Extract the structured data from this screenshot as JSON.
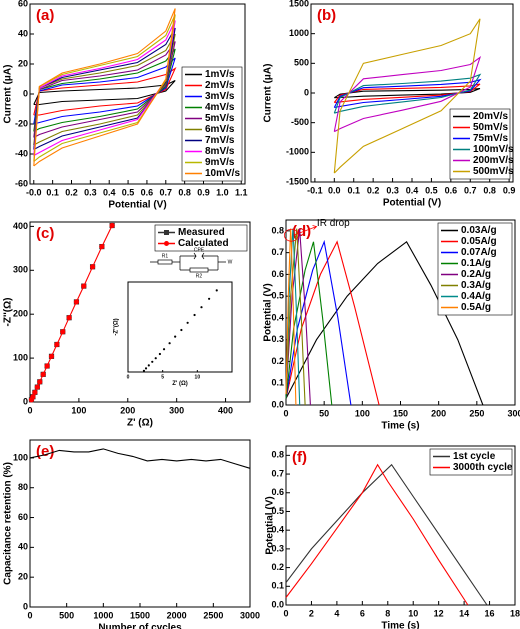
{
  "chart_data": [
    {
      "type": "line",
      "panel_label": "(a)",
      "xlabel": "Potential (V)",
      "ylabel": "Current (μA)",
      "legend": "lower right",
      "xlim": [
        -0.02,
        1.12
      ],
      "ylim": [
        -60,
        60
      ],
      "xticks": [
        {
          "value": 0,
          "label": "-0.0"
        },
        0.1,
        0.2,
        0.3,
        0.4,
        0.5,
        0.6,
        0.7,
        0.8,
        0.9,
        {
          "value": 1,
          "label": "1.0"
        },
        1.1
      ],
      "yticks": [
        -60,
        -40,
        -20,
        0,
        20,
        40,
        60
      ],
      "x": [
        0,
        0.03,
        0.15,
        0.35,
        0.55,
        0.7,
        0.75,
        0.7,
        0.55,
        0.35,
        0.15,
        0.03,
        0
      ],
      "series": [
        {
          "name": "1mV/s",
          "color": "#000000",
          "values": [
            -7,
            1,
            2,
            3,
            4,
            6,
            9,
            2,
            -3,
            -4,
            -5,
            -7,
            -7
          ]
        },
        {
          "name": "2mV/s",
          "color": "#ff0000",
          "values": [
            -14,
            2,
            4,
            6,
            8,
            13,
            17,
            3,
            -6,
            -8,
            -11,
            -14,
            -14
          ]
        },
        {
          "name": "3mV/s",
          "color": "#0000ff",
          "values": [
            -20,
            2,
            6,
            8,
            11,
            18,
            24,
            4,
            -8,
            -12,
            -15,
            -19,
            -20
          ]
        },
        {
          "name": "4mV/s",
          "color": "#008000",
          "values": [
            -25,
            3,
            7,
            10,
            14,
            22,
            30,
            5,
            -10,
            -15,
            -19,
            -23,
            -25
          ]
        },
        {
          "name": "5mV/s",
          "color": "#800080",
          "values": [
            -29,
            3,
            9,
            12,
            16,
            26,
            35,
            6,
            -12,
            -17,
            -22,
            -27,
            -29
          ]
        },
        {
          "name": "6mV/s",
          "color": "#808000",
          "values": [
            -34,
            4,
            10,
            14,
            19,
            29,
            40,
            7,
            -14,
            -20,
            -25,
            -32,
            -34
          ]
        },
        {
          "name": "7mV/s",
          "color": "#000080",
          "values": [
            -37,
            4,
            11,
            16,
            21,
            33,
            44,
            8,
            -16,
            -22,
            -28,
            -35,
            -37
          ]
        },
        {
          "name": "8mV/s",
          "color": "#ff00ff",
          "values": [
            -41,
            4,
            12,
            17,
            23,
            36,
            49,
            9,
            -17,
            -24,
            -31,
            -39,
            -41
          ]
        },
        {
          "name": "9mV/s",
          "color": "#b8b800",
          "values": [
            -45,
            5,
            13,
            19,
            25,
            39,
            53,
            9,
            -19,
            -26,
            -33,
            -42,
            -45
          ]
        },
        {
          "name": "10mV/s",
          "color": "#ff8000",
          "values": [
            -48,
            5,
            14,
            20,
            27,
            42,
            57,
            10,
            -20,
            -28,
            -36,
            -45,
            -48
          ]
        }
      ]
    },
    {
      "type": "line",
      "panel_label": "(b)",
      "xlabel": "Potential (V)",
      "ylabel": "Current (μA)",
      "legend": "lower right",
      "xlim": [
        -0.12,
        0.92
      ],
      "ylim": [
        -1500,
        1500
      ],
      "xticks": [
        -0.1,
        {
          "value": 0,
          "label": "0.0"
        },
        0.1,
        0.2,
        0.3,
        0.4,
        0.5,
        0.6,
        0.7,
        0.8,
        0.9
      ],
      "yticks": [
        -1500,
        -1000,
        -500,
        0,
        500,
        1000,
        1500
      ],
      "x": [
        0,
        0.03,
        0.15,
        0.35,
        0.55,
        0.7,
        0.75,
        0.7,
        0.55,
        0.35,
        0.15,
        0.03,
        0
      ],
      "series": [
        {
          "name": "20mV/s",
          "color": "#000000",
          "values": [
            -80,
            -18,
            30,
            39,
            48,
            60,
            75,
            12,
            -18,
            -36,
            -54,
            -75,
            -80
          ]
        },
        {
          "name": "50mV/s",
          "color": "#ff0000",
          "values": [
            -160,
            -35,
            60,
            78,
            95,
            120,
            150,
            25,
            -35,
            -72,
            -108,
            -150,
            -160
          ]
        },
        {
          "name": "75mV/s",
          "color": "#0000ff",
          "values": [
            -245,
            -55,
            90,
            115,
            145,
            180,
            225,
            35,
            -55,
            -110,
            -160,
            -225,
            -245
          ]
        },
        {
          "name": "100mV/s",
          "color": "#008080",
          "values": [
            -340,
            -75,
            125,
            160,
            200,
            250,
            310,
            50,
            -75,
            -150,
            -225,
            -310,
            -340
          ]
        },
        {
          "name": "200mV/s",
          "color": "#c000c0",
          "values": [
            -650,
            -150,
            240,
            310,
            380,
            480,
            600,
            100,
            -140,
            -290,
            -430,
            -600,
            -650
          ]
        },
        {
          "name": "500mV/s",
          "color": "#c8a000",
          "values": [
            -1350,
            -300,
            500,
            650,
            800,
            1000,
            1250,
            200,
            -300,
            -600,
            -900,
            -1250,
            -1350
          ]
        }
      ]
    },
    {
      "type": "line",
      "panel_label": "(c)",
      "xlabel": "Z' (Ω)",
      "ylabel": "-Z''(Ω)",
      "legend": "upper right",
      "xlim": [
        0,
        450
      ],
      "ylim": [
        0,
        410
      ],
      "xticks": [
        0,
        100,
        200,
        300,
        400
      ],
      "yticks": [
        0,
        100,
        200,
        300,
        400
      ],
      "circuit": [
        "R1",
        "CPE",
        "R2",
        "W"
      ],
      "x": [
        3,
        6,
        10,
        15,
        20,
        27,
        35,
        44,
        55,
        67,
        80,
        95,
        110,
        128,
        147,
        168
      ],
      "series": [
        {
          "name": "Measured",
          "color": "#333333",
          "marker": "square",
          "values": [
            5,
            12,
            22,
            34,
            46,
            63,
            82,
            104,
            131,
            160,
            192,
            228,
            264,
            308,
            354,
            402
          ]
        },
        {
          "name": "Calculated",
          "color": "#ff0000",
          "marker": "circle",
          "line": true,
          "values": [
            5,
            12,
            22,
            34,
            46,
            63,
            82,
            104,
            131,
            160,
            192,
            228,
            264,
            308,
            354,
            402
          ]
        }
      ]
    },
    {
      "type": "scatter",
      "xlabel": "Z' (Ω)",
      "ylabel": "-Z''(Ω)",
      "xlim": [
        0,
        15
      ],
      "ylim": [
        0,
        15
      ],
      "xticks": [
        0,
        5,
        10
      ],
      "x": [
        2.3,
        2.6,
        3,
        3.5,
        4,
        4.6,
        5.2,
        6,
        6.8,
        7.7,
        8.6,
        9.6,
        10.6,
        11.7,
        12.8
      ],
      "series": [
        {
          "color": "#000000",
          "marker": "circle",
          "values": [
            0.2,
            0.6,
            1.1,
            1.7,
            2.3,
            3,
            3.8,
            4.8,
            5.9,
            7,
            8.2,
            9.5,
            10.8,
            12.2,
            13.6
          ]
        }
      ]
    },
    {
      "type": "line",
      "panel_label": "(d)",
      "xlabel": "Time (s)",
      "ylabel": "Potential (V)",
      "legend": "upper right",
      "annotation": "IR drop",
      "xlim": [
        0,
        300
      ],
      "ylim": [
        0,
        0.85
      ],
      "xticks": [
        0,
        50,
        100,
        150,
        200,
        250,
        300
      ],
      "yticks": [
        {
          "value": 0,
          "label": "0.0"
        },
        0.1,
        0.2,
        0.3,
        0.4,
        0.5,
        0.6,
        0.7,
        0.8
      ],
      "series": [
        {
          "name": "0.03A/g",
          "color": "#000000",
          "x": [
            0,
            40,
            80,
            120,
            158,
            190,
            225,
            258
          ],
          "values": [
            0.03,
            0.3,
            0.5,
            0.65,
            0.75,
            0.55,
            0.3,
            0
          ]
        },
        {
          "name": "0.05A/g",
          "color": "#ff0000",
          "x": [
            0,
            20,
            45,
            67,
            90,
            122
          ],
          "values": [
            0.03,
            0.35,
            0.6,
            0.75,
            0.45,
            0
          ]
        },
        {
          "name": "0.07A/g",
          "color": "#0000ff",
          "x": [
            0,
            15,
            35,
            50,
            68,
            85
          ],
          "values": [
            0.03,
            0.35,
            0.62,
            0.75,
            0.4,
            0
          ]
        },
        {
          "name": "0.1A/g",
          "color": "#008000",
          "x": [
            0,
            10,
            25,
            36,
            48,
            60
          ],
          "values": [
            0.03,
            0.35,
            0.62,
            0.75,
            0.4,
            0
          ]
        },
        {
          "name": "0.2A/g",
          "color": "#800080",
          "x": [
            0,
            8,
            18,
            19,
            26,
            32
          ],
          "values": [
            0.05,
            0.5,
            0.81,
            0.75,
            0.4,
            0
          ]
        },
        {
          "name": "0.3A/g",
          "color": "#808000",
          "x": [
            0,
            6,
            14,
            15,
            20,
            25
          ],
          "values": [
            0.05,
            0.5,
            0.81,
            0.75,
            0.4,
            0
          ]
        },
        {
          "name": "0.4A/g",
          "color": "#008b8b",
          "x": [
            0,
            4,
            9,
            10,
            14,
            18
          ],
          "values": [
            0.05,
            0.5,
            0.81,
            0.75,
            0.4,
            0
          ]
        },
        {
          "name": "0.5A/g",
          "color": "#ff8000",
          "x": [
            0,
            3,
            6,
            7,
            10,
            13
          ],
          "values": [
            0.05,
            0.5,
            0.81,
            0.75,
            0.4,
            0
          ]
        }
      ]
    },
    {
      "type": "line",
      "panel_label": "(e)",
      "xlabel": "Number of cycles",
      "ylabel": "Capacitance retention (%)",
      "xlim": [
        0,
        3000
      ],
      "ylim": [
        0,
        112
      ],
      "xticks": [
        0,
        500,
        1000,
        1500,
        2000,
        2500,
        3000
      ],
      "yticks": [
        0,
        20,
        40,
        60,
        80,
        100
      ],
      "x": [
        0,
        200,
        400,
        600,
        800,
        1000,
        1200,
        1400,
        1600,
        1800,
        2000,
        2200,
        2400,
        2600,
        2800,
        3000
      ],
      "series": [
        {
          "color": "#000000",
          "values": [
            100,
            102,
            105,
            104,
            104,
            106,
            103,
            101,
            98,
            99,
            98,
            99,
            98,
            99,
            96,
            93
          ]
        }
      ]
    },
    {
      "type": "line",
      "panel_label": "(f)",
      "xlabel": "Time (s)",
      "ylabel": "Potential (V)",
      "legend": "upper right",
      "xlim": [
        0,
        18
      ],
      "ylim": [
        0,
        0.85
      ],
      "xticks": [
        0,
        2,
        4,
        6,
        8,
        10,
        12,
        14,
        16,
        18
      ],
      "yticks": [
        {
          "value": 0,
          "label": "0.0"
        },
        0.1,
        0.2,
        0.3,
        0.4,
        0.5,
        0.6,
        0.7,
        0.8
      ],
      "series": [
        {
          "name": "1st cycle",
          "color": "#333333",
          "x": [
            0,
            2,
            4,
            6,
            8.3,
            10,
            12,
            14,
            15.8
          ],
          "values": [
            0.12,
            0.3,
            0.45,
            0.6,
            0.75,
            0.58,
            0.38,
            0.18,
            0
          ]
        },
        {
          "name": "3000th cycle",
          "color": "#ff0000",
          "x": [
            0,
            2,
            4,
            6,
            7.2,
            8,
            10,
            12,
            14.3
          ],
          "values": [
            0.04,
            0.22,
            0.41,
            0.6,
            0.75,
            0.66,
            0.46,
            0.24,
            0
          ]
        }
      ]
    }
  ]
}
